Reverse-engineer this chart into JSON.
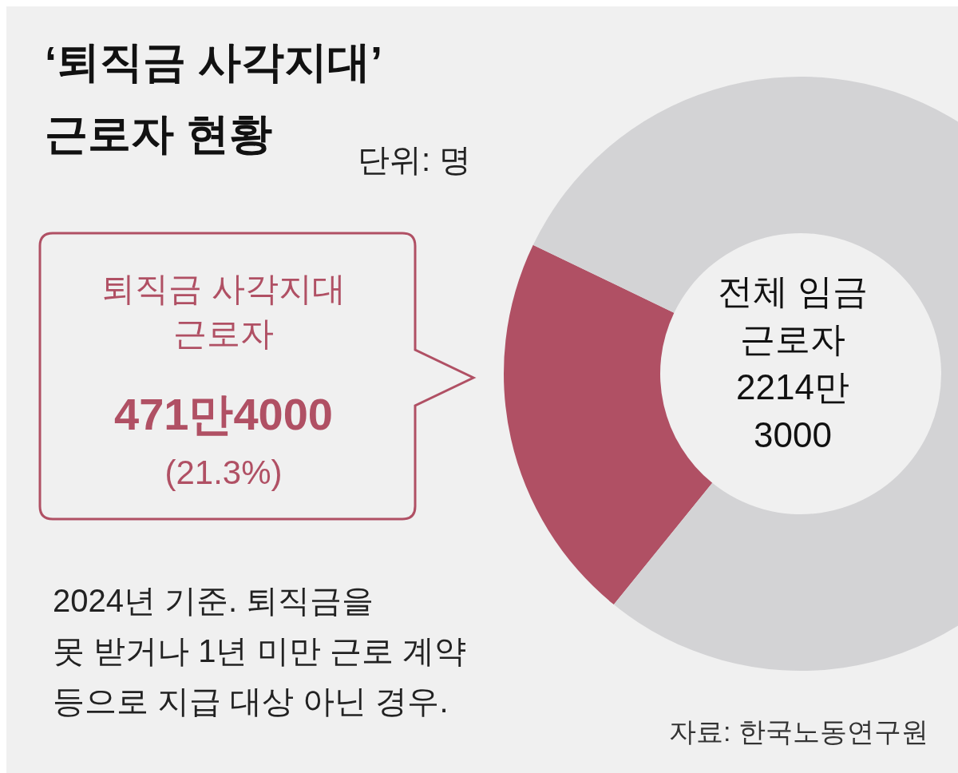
{
  "chart_data": {
    "type": "donut",
    "title": "‘퇴직금 사각지대’\n근로자 현황",
    "subtitle": "단위: 명",
    "categories": [
      "퇴직금 사각지대\n근로자",
      null
    ],
    "values": [
      21.3,
      78.7
    ],
    "colors": [
      "#b05064",
      "#d3d3d5"
    ],
    "value_labels": [
      "(21.3%)",
      null
    ],
    "annotations": [
      "471만4000",
      "전체 임금\n근로자\n2214만\n3000",
      "2024년 기준. 퇴직금을\n못 받거나 1년 미만 근로 계약\n등으로 지급 대상 아닌 경우.",
      "자료: 한국노동연구원"
    ]
  }
}
